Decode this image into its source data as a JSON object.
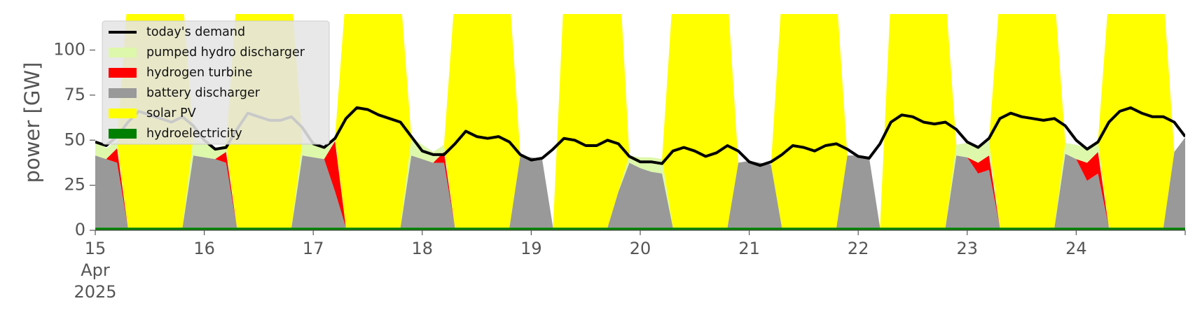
{
  "chart_data": {
    "type": "area",
    "title": "",
    "xlabel": "",
    "ylabel": "power [GW]",
    "x_start": "2025-04-15",
    "x_end": "2025-04-25",
    "xlim_days": [
      15,
      25
    ],
    "ylim": [
      0,
      120
    ],
    "yticks": [
      0,
      25,
      50,
      75,
      100
    ],
    "ytick_labels": [
      "0",
      "25",
      "50",
      "75",
      "100"
    ],
    "xtick_labels": [
      "15",
      "16",
      "17",
      "18",
      "19",
      "20",
      "21",
      "22",
      "23",
      "24"
    ],
    "xtick_sublabels": [
      "Apr",
      "2025"
    ],
    "grid": false,
    "legend_placement": "upper-left",
    "colors": {
      "hydroelectricity": "#008000",
      "solar_pv": "#ffff00",
      "battery_discharger": "#999999",
      "hydrogen_turbine": "#ff0000",
      "pumped_hydro_discharger": "#ddf8aa",
      "demand": "#000000"
    },
    "legend": [
      {
        "label": "today's demand",
        "kind": "line",
        "color": "#000000"
      },
      {
        "label": "pumped hydro discharger",
        "kind": "patch",
        "color": "#ddf8aa"
      },
      {
        "label": "hydrogen turbine",
        "kind": "patch",
        "color": "#ff0000"
      },
      {
        "label": "battery discharger",
        "kind": "patch",
        "color": "#999999"
      },
      {
        "label": "solar PV",
        "kind": "patch",
        "color": "#ffff00"
      },
      {
        "label": "hydroelectricity",
        "kind": "patch",
        "color": "#008000"
      }
    ],
    "series": [
      {
        "name": "today's demand",
        "x": [
          15.0,
          15.1,
          15.2,
          15.3,
          15.4,
          15.5,
          15.6,
          15.7,
          15.8,
          15.9,
          16.0,
          16.1,
          16.2,
          16.3,
          16.4,
          16.5,
          16.6,
          16.7,
          16.8,
          16.9,
          17.0,
          17.1,
          17.2,
          17.3,
          17.4,
          17.5,
          17.6,
          17.7,
          17.8,
          17.9,
          18.0,
          18.1,
          18.2,
          18.3,
          18.4,
          18.5,
          18.6,
          18.7,
          18.8,
          18.9,
          19.0,
          19.1,
          19.2,
          19.3,
          19.4,
          19.5,
          19.6,
          19.7,
          19.8,
          19.9,
          20.0,
          20.1,
          20.2,
          20.3,
          20.4,
          20.5,
          20.6,
          20.7,
          20.8,
          20.9,
          21.0,
          21.1,
          21.2,
          21.3,
          21.4,
          21.5,
          21.6,
          21.7,
          21.8,
          21.9,
          22.0,
          22.1,
          22.2,
          22.3,
          22.4,
          22.5,
          22.6,
          22.7,
          22.8,
          22.9,
          23.0,
          23.1,
          23.2,
          23.3,
          23.4,
          23.5,
          23.6,
          23.7,
          23.8,
          23.9,
          24.0,
          24.1,
          24.2,
          24.3,
          24.4,
          24.5,
          24.6,
          24.7,
          24.8,
          24.9,
          25.0
        ],
        "values": [
          49,
          47,
          52,
          60,
          66,
          64,
          62,
          60,
          63,
          58,
          50,
          45,
          46,
          56,
          65,
          63,
          61,
          61,
          63,
          57,
          48,
          46,
          51,
          62,
          68,
          67,
          64,
          62,
          60,
          52,
          44,
          42,
          42,
          48,
          55,
          52,
          51,
          52,
          49,
          42,
          39,
          40,
          45,
          51,
          50,
          47,
          47,
          50,
          48,
          41,
          38,
          38,
          37,
          44,
          46,
          44,
          41,
          43,
          47,
          44,
          38,
          36,
          38,
          42,
          47,
          46,
          44,
          47,
          48,
          45,
          41,
          40,
          48,
          60,
          64,
          63,
          60,
          59,
          60,
          56,
          49,
          46,
          51,
          62,
          65,
          63,
          62,
          61,
          62,
          58,
          50,
          45,
          49,
          60,
          66,
          68,
          65,
          63,
          63,
          60,
          52
        ]
      },
      {
        "name": "hydroelectricity",
        "x": [
          15,
          25
        ],
        "values": [
          1.5,
          1.5
        ]
      }
    ],
    "generation_envelope": {
      "x": [
        15.0,
        15.1,
        15.2,
        15.3,
        15.4,
        15.5,
        15.6,
        15.7,
        15.8,
        15.9,
        16.0,
        16.1,
        16.2,
        16.3,
        16.4,
        16.5,
        16.6,
        16.7,
        16.8,
        16.9,
        17.0,
        17.1,
        17.2,
        17.3,
        17.4,
        17.5,
        17.6,
        17.7,
        17.8,
        17.9,
        18.0,
        18.1,
        18.2,
        18.3,
        18.4,
        18.5,
        18.6,
        18.7,
        18.8,
        18.9,
        19.0,
        19.1,
        19.2,
        19.3,
        19.4,
        19.5,
        19.6,
        19.7,
        19.8,
        19.9,
        20.0,
        20.1,
        20.2,
        20.3,
        20.4,
        20.5,
        20.6,
        20.7,
        20.8,
        20.9,
        21.0,
        21.1,
        21.2,
        21.3,
        21.4,
        21.5,
        21.6,
        21.7,
        21.8,
        21.9,
        22.0,
        22.1,
        22.2,
        22.3,
        22.4,
        22.5,
        22.6,
        22.7,
        22.8,
        22.9,
        23.0,
        23.1,
        23.2,
        23.3,
        23.4,
        23.5,
        23.6,
        23.7,
        23.8,
        23.9,
        24.0,
        24.1,
        24.2,
        24.3,
        24.4,
        24.5,
        24.6,
        24.7,
        24.8,
        24.9,
        25.0
      ],
      "battery_discharger": [
        40,
        38,
        36,
        0,
        0,
        0,
        0,
        0,
        0,
        40,
        39,
        38,
        36,
        0,
        0,
        0,
        0,
        0,
        0,
        40,
        39,
        38,
        20,
        0,
        0,
        0,
        0,
        0,
        0,
        40,
        38,
        36,
        36,
        0,
        0,
        0,
        0,
        0,
        0,
        40,
        39,
        38,
        0,
        0,
        0,
        0,
        0,
        0,
        20,
        36,
        33,
        31,
        30,
        0,
        0,
        0,
        0,
        0,
        0,
        36,
        37,
        36,
        35,
        0,
        0,
        0,
        0,
        0,
        0,
        40,
        40,
        39,
        0,
        0,
        0,
        0,
        0,
        0,
        0,
        40,
        39,
        30,
        32,
        0,
        0,
        0,
        0,
        0,
        0,
        41,
        38,
        26,
        30,
        0,
        0,
        0,
        0,
        0,
        0,
        42,
        50
      ],
      "hydrogen_turbine": [
        0,
        0,
        8,
        0,
        0,
        0,
        0,
        0,
        0,
        0,
        0,
        0,
        6,
        0,
        0,
        0,
        0,
        0,
        0,
        0,
        0,
        0,
        28,
        0,
        0,
        0,
        0,
        0,
        0,
        0,
        0,
        0,
        6,
        0,
        0,
        0,
        0,
        0,
        0,
        0,
        0,
        0,
        0,
        0,
        0,
        0,
        0,
        0,
        0,
        0,
        0,
        0,
        0,
        0,
        0,
        0,
        0,
        0,
        0,
        0,
        0,
        0,
        0,
        0,
        0,
        0,
        0,
        0,
        0,
        0,
        0,
        0,
        0,
        0,
        0,
        0,
        0,
        0,
        0,
        0,
        0,
        6,
        8,
        0,
        0,
        0,
        0,
        0,
        0,
        0,
        0,
        10,
        12,
        0,
        0,
        0,
        0,
        0,
        0,
        0,
        0
      ],
      "pumped_hydro_discharger": [
        8,
        6,
        4,
        0,
        0,
        0,
        0,
        0,
        0,
        10,
        8,
        6,
        4,
        0,
        0,
        0,
        0,
        0,
        0,
        8,
        7,
        6,
        2,
        0,
        0,
        0,
        0,
        0,
        0,
        10,
        8,
        6,
        4,
        0,
        0,
        0,
        0,
        0,
        0,
        0,
        0,
        0,
        0,
        0,
        0,
        0,
        0,
        0,
        0,
        4,
        6,
        8,
        8,
        0,
        0,
        0,
        0,
        0,
        0,
        0,
        0,
        0,
        0,
        0,
        0,
        0,
        0,
        0,
        0,
        0,
        0,
        0,
        0,
        0,
        0,
        0,
        0,
        0,
        0,
        6,
        8,
        8,
        8,
        0,
        0,
        0,
        0,
        0,
        0,
        6,
        8,
        8,
        6,
        0,
        0,
        0,
        0,
        0,
        0,
        0,
        0
      ],
      "solar_pv": [
        0,
        0,
        0,
        130,
        130,
        130,
        130,
        130,
        130,
        0,
        0,
        0,
        0,
        130,
        130,
        130,
        130,
        130,
        130,
        0,
        0,
        0,
        0,
        130,
        130,
        130,
        130,
        130,
        130,
        0,
        0,
        0,
        0,
        130,
        130,
        130,
        130,
        130,
        130,
        0,
        0,
        0,
        0,
        130,
        130,
        130,
        130,
        130,
        130,
        0,
        0,
        0,
        0,
        130,
        130,
        130,
        130,
        130,
        130,
        0,
        0,
        0,
        0,
        130,
        130,
        130,
        130,
        130,
        130,
        0,
        0,
        0,
        0,
        130,
        130,
        130,
        130,
        130,
        130,
        0,
        0,
        0,
        0,
        130,
        130,
        130,
        130,
        130,
        130,
        0,
        0,
        0,
        0,
        130,
        130,
        130,
        130,
        130,
        130,
        0,
        0
      ]
    }
  }
}
